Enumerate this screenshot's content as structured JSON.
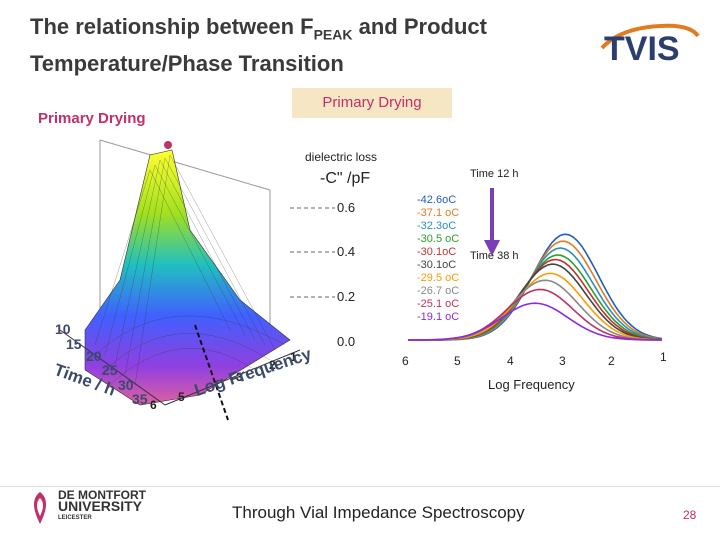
{
  "slide": {
    "title_part1": "The relationship between F",
    "title_sub": "PEAK",
    "title_part2": " and Product Temperature/Phase Transition",
    "logo_text": "TVIS",
    "primary_drying_label": "Primary Drying",
    "primary_drying_box": "Primary Drying",
    "footer_text": "Through Vial Impedance Spectroscopy",
    "page_number": "28",
    "dmu_line1": "DE MONTFORT",
    "dmu_line2": "UNIVERSITY",
    "dmu_line3": "LEICESTER"
  },
  "surface_plot": {
    "time_ticks": [
      "10",
      "15",
      "20",
      "25",
      "30",
      "35"
    ],
    "time_label": "Time / h",
    "freq_ticks": [
      "6",
      "5",
      "3",
      "2",
      "1"
    ],
    "freq_label": "Log Frequency"
  },
  "chart_data": {
    "type": "line",
    "title": "dielectric loss",
    "ylabel": "-C\" /pF",
    "xlabel": "Log Frequency",
    "x_ticks": [
      "6",
      "5",
      "4",
      "3",
      "2",
      "1"
    ],
    "y_ticks": [
      "0.6",
      "0.4",
      "0.2",
      "0.0"
    ],
    "ylim": [
      0,
      0.6
    ],
    "xlim": [
      6,
      1
    ],
    "annotations": [
      "Time 12 h",
      "Time 38 h"
    ],
    "series": [
      {
        "name": "-42.6oC",
        "color": "#1f5fbf",
        "peak_x": 2.9,
        "peak_y": 0.46
      },
      {
        "name": "-37.1 oC",
        "color": "#e07b20",
        "peak_x": 2.95,
        "peak_y": 0.43
      },
      {
        "name": "-32.3oC",
        "color": "#2a8fbf",
        "peak_x": 3.0,
        "peak_y": 0.4
      },
      {
        "name": "-30.5 oC",
        "color": "#2aa02a",
        "peak_x": 3.05,
        "peak_y": 0.37
      },
      {
        "name": "-30.1oC",
        "color": "#c03030",
        "peak_x": 3.1,
        "peak_y": 0.35
      },
      {
        "name": "-30.1oC",
        "color": "#444444",
        "peak_x": 3.15,
        "peak_y": 0.33
      },
      {
        "name": "-29.5 oC",
        "color": "#ff9900",
        "peak_x": 3.2,
        "peak_y": 0.29
      },
      {
        "name": "-26.7 oC",
        "color": "#888888",
        "peak_x": 3.3,
        "peak_y": 0.26
      },
      {
        "name": "-25.1 oC",
        "color": "#c03060",
        "peak_x": 3.4,
        "peak_y": 0.22
      },
      {
        "name": "-19.1 oC",
        "color": "#8a2be2",
        "peak_x": 3.5,
        "peak_y": 0.16
      }
    ]
  },
  "colors": {
    "accent": "#c0306a",
    "title": "#3a3a3a",
    "axis_3d": "#3b4a6b"
  }
}
